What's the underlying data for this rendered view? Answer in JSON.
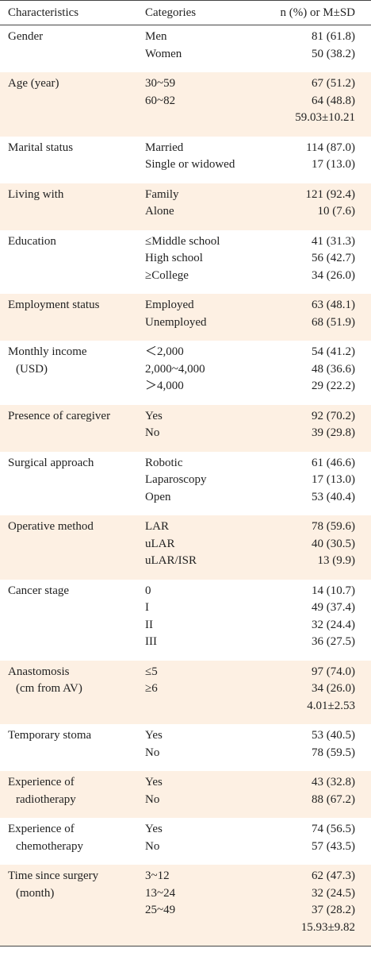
{
  "table": {
    "header": [
      "Characteristics",
      "Categories",
      "n (%) or M±SD"
    ],
    "groups": [
      {
        "label": [
          "Gender"
        ],
        "rows": [
          {
            "category": "Men",
            "value": "81 (61.8)"
          },
          {
            "category": "Women",
            "value": "50 (38.2)"
          }
        ]
      },
      {
        "label": [
          "Age (year)"
        ],
        "rows": [
          {
            "category": "30~59",
            "value": "67 (51.2)"
          },
          {
            "category": "60~82",
            "value": "64 (48.8)"
          }
        ],
        "summary": "59.03±10.21"
      },
      {
        "label": [
          "Marital status"
        ],
        "rows": [
          {
            "category": "Married",
            "value": "114 (87.0)"
          },
          {
            "category": "Single or widowed",
            "value": "17 (13.0)"
          }
        ]
      },
      {
        "label": [
          "Living with"
        ],
        "rows": [
          {
            "category": "Family",
            "value": "121 (92.4)"
          },
          {
            "category": "Alone",
            "value": "10 (7.6)"
          }
        ]
      },
      {
        "label": [
          "Education"
        ],
        "rows": [
          {
            "category": "≤Middle school",
            "value": "41 (31.3)"
          },
          {
            "category": "High school",
            "value": "56 (42.7)"
          },
          {
            "category": "≥College",
            "value": "34 (26.0)"
          }
        ]
      },
      {
        "label": [
          "Employment status"
        ],
        "rows": [
          {
            "category": "Employed",
            "value": "63 (48.1)"
          },
          {
            "category": "Unemployed",
            "value": "68 (51.9)"
          }
        ]
      },
      {
        "label": [
          "Monthly income",
          "(USD)"
        ],
        "rows": [
          {
            "category": "＜2,000",
            "value": "54 (41.2)"
          },
          {
            "category": "2,000~4,000",
            "value": "48 (36.6)"
          },
          {
            "category": "＞4,000",
            "value": "29 (22.2)"
          }
        ]
      },
      {
        "label": [
          "Presence of caregiver"
        ],
        "rows": [
          {
            "category": "Yes",
            "value": "92 (70.2)"
          },
          {
            "category": "No",
            "value": "39 (29.8)"
          }
        ]
      },
      {
        "label": [
          "Surgical approach"
        ],
        "rows": [
          {
            "category": "Robotic",
            "value": "61 (46.6)"
          },
          {
            "category": "Laparoscopy",
            "value": "17 (13.0)"
          },
          {
            "category": "Open",
            "value": "53 (40.4)"
          }
        ]
      },
      {
        "label": [
          "Operative method"
        ],
        "rows": [
          {
            "category": "LAR",
            "value": "78 (59.6)"
          },
          {
            "category": "uLAR",
            "value": "40 (30.5)"
          },
          {
            "category": "uLAR/ISR",
            "value": "13 (9.9)"
          }
        ]
      },
      {
        "label": [
          "Cancer stage"
        ],
        "rows": [
          {
            "category": "0",
            "value": "14 (10.7)"
          },
          {
            "category": "I",
            "value": "49 (37.4)"
          },
          {
            "category": "II",
            "value": "32 (24.4)"
          },
          {
            "category": "III",
            "value": "36 (27.5)"
          }
        ]
      },
      {
        "label": [
          "Anastomosis",
          "(cm from AV)"
        ],
        "rows": [
          {
            "category": "≤5",
            "value": "97 (74.0)"
          },
          {
            "category": "≥6",
            "value": "34 (26.0)"
          }
        ],
        "summary": "4.01±2.53"
      },
      {
        "label": [
          "Temporary stoma"
        ],
        "rows": [
          {
            "category": "Yes",
            "value": "53 (40.5)"
          },
          {
            "category": "No",
            "value": "78 (59.5)"
          }
        ]
      },
      {
        "label": [
          "Experience of",
          "radiotherapy"
        ],
        "rows": [
          {
            "category": "Yes",
            "value": "43 (32.8)"
          },
          {
            "category": "No",
            "value": "88 (67.2)"
          }
        ]
      },
      {
        "label": [
          "Experience of",
          "chemotherapy"
        ],
        "rows": [
          {
            "category": "Yes",
            "value": "74 (56.5)"
          },
          {
            "category": "No",
            "value": "57 (43.5)"
          }
        ]
      },
      {
        "label": [
          "Time since surgery",
          "(month)"
        ],
        "rows": [
          {
            "category": "3~12",
            "value": "62 (47.3)"
          },
          {
            "category": "13~24",
            "value": "32 (24.5)"
          },
          {
            "category": "25~49",
            "value": "37 (28.2)"
          }
        ],
        "summary": "15.93±9.82"
      }
    ]
  }
}
